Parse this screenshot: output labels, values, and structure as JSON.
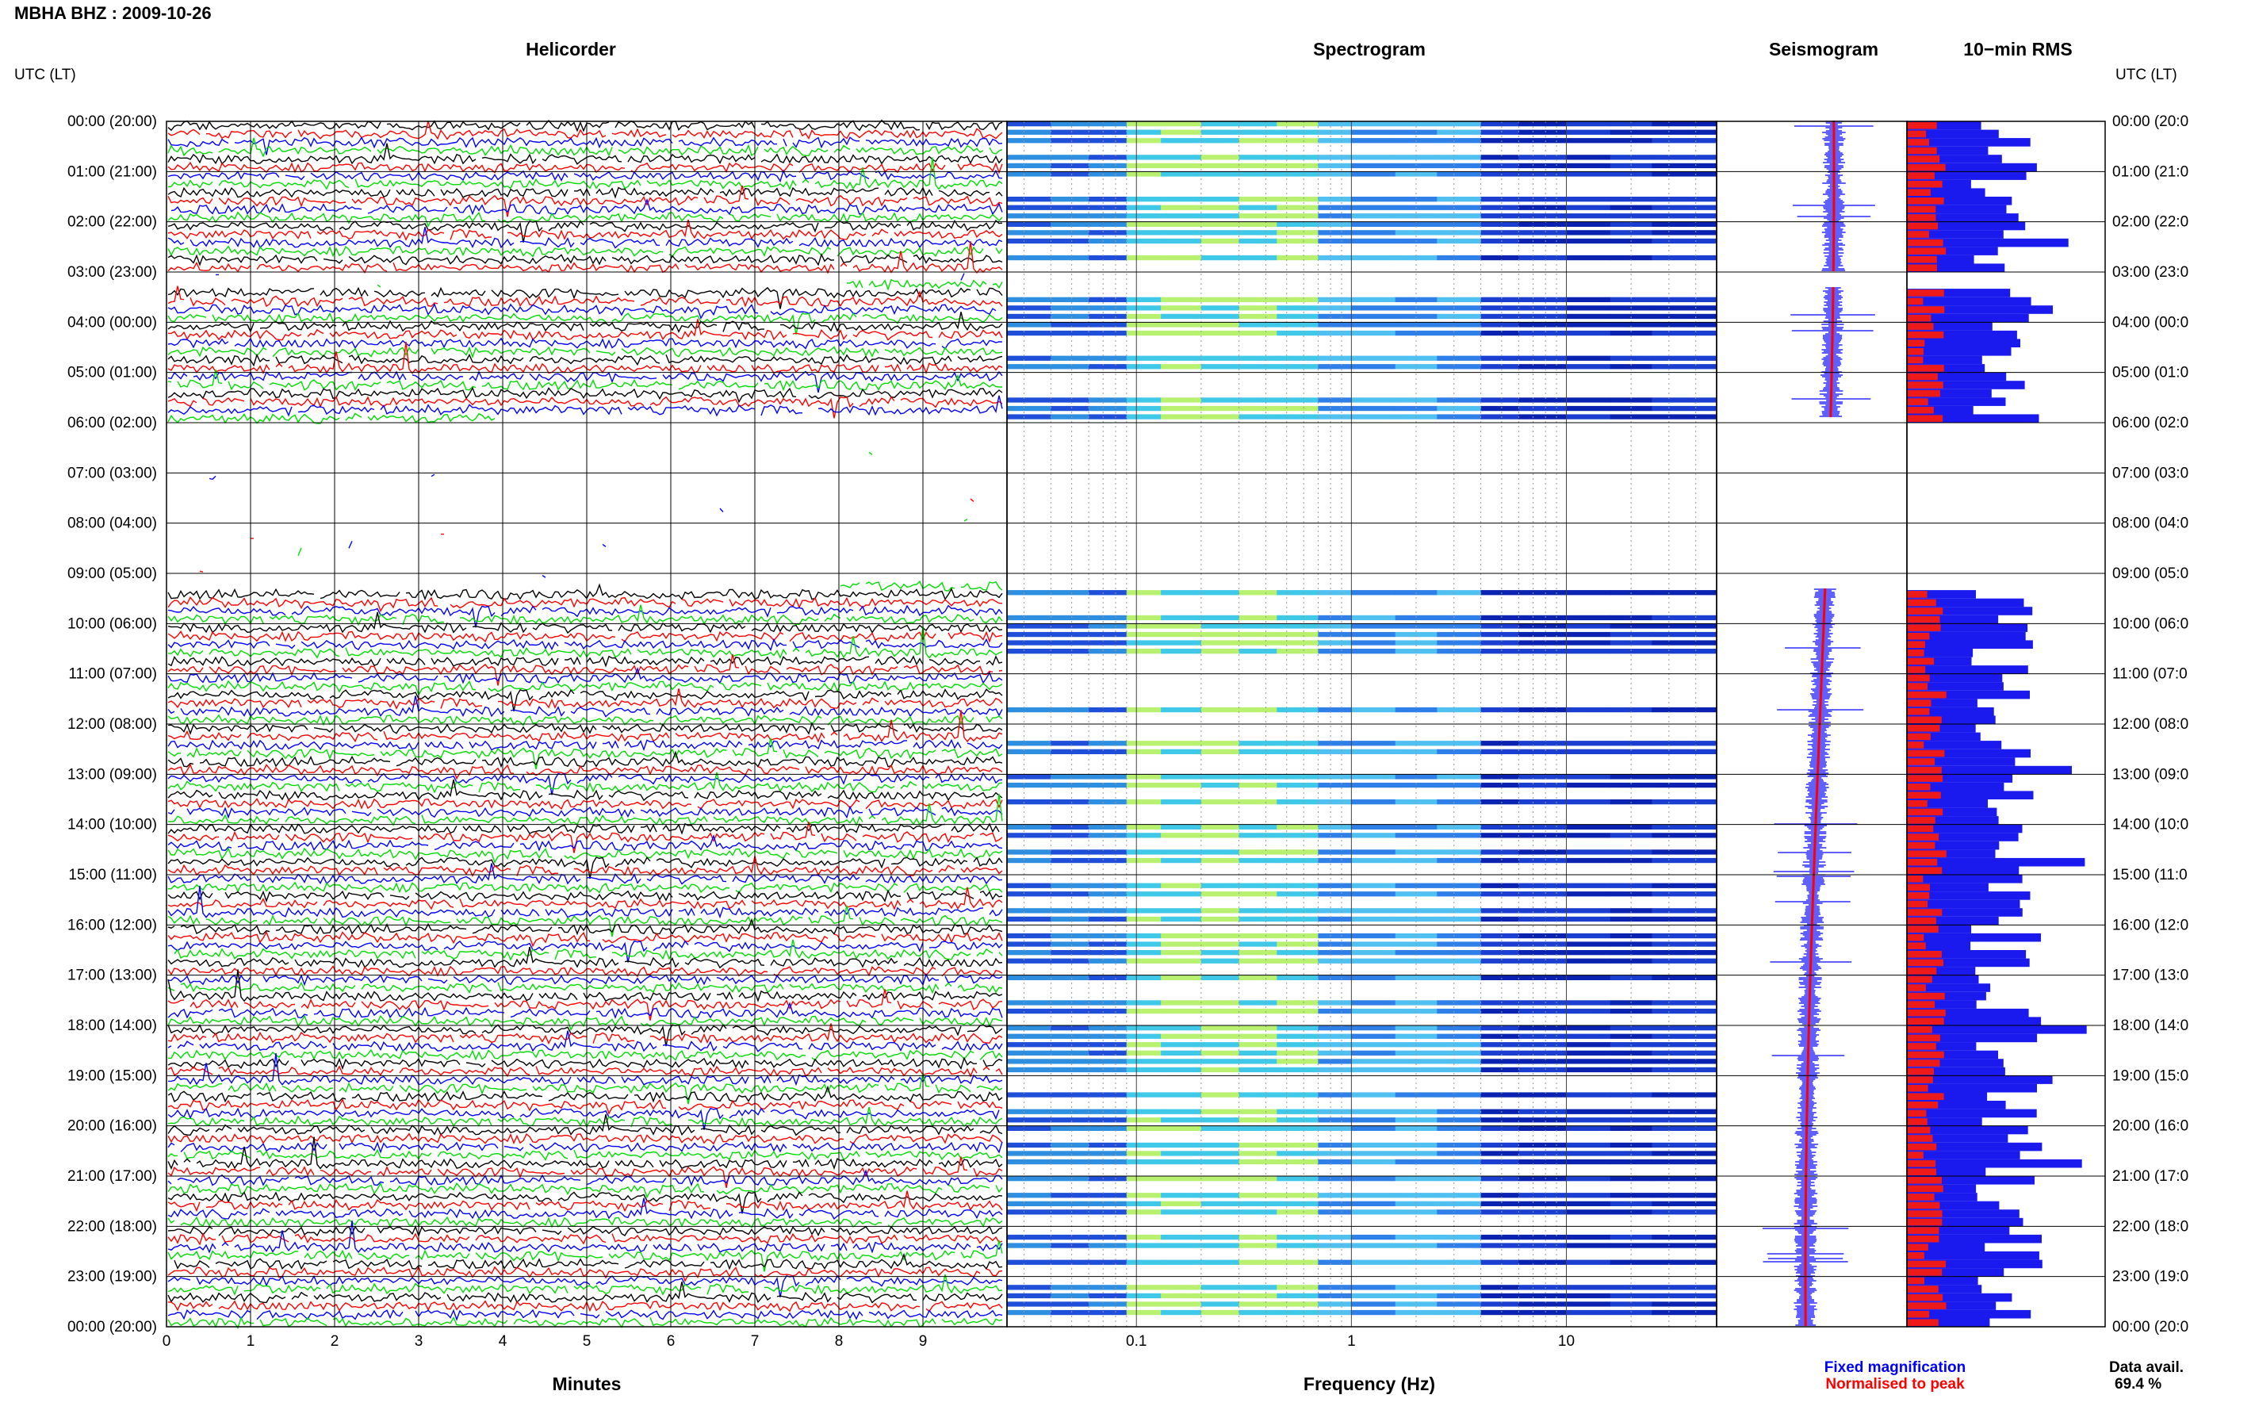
{
  "chart_data": {
    "type": "heatmap",
    "title": "MBHA BHZ : 2009-10-26",
    "time_axis_label": "UTC (LT)",
    "hour_ticks": [
      "00:00 (20:00)",
      "01:00 (21:00)",
      "02:00 (22:00)",
      "03:00 (23:00)",
      "04:00 (00:00)",
      "05:00 (01:00)",
      "06:00 (02:00)",
      "07:00 (03:00)",
      "08:00 (04:00)",
      "09:00 (05:00)",
      "10:00 (06:00)",
      "11:00 (07:00)",
      "12:00 (08:00)",
      "13:00 (09:00)",
      "14:00 (10:00)",
      "15:00 (11:00)",
      "16:00 (12:00)",
      "17:00 (13:00)",
      "18:00 (14:00)",
      "19:00 (15:00)",
      "20:00 (16:00)",
      "21:00 (17:00)",
      "22:00 (18:00)",
      "23:00 (19:00)",
      "00:00 (20:00)"
    ],
    "right_hour_ticks": [
      "00:00 (20:0",
      "01:00 (21:0",
      "02:00 (22:0",
      "03:00 (23:0",
      "04:00 (00:0",
      "05:00 (01:0",
      "06:00 (02:0",
      "07:00 (03:0",
      "08:00 (04:0",
      "09:00 (05:0",
      "10:00 (06:0",
      "11:00 (07:0",
      "12:00 (08:0",
      "13:00 (09:0",
      "14:00 (10:0",
      "15:00 (11:0",
      "16:00 (12:0",
      "17:00 (13:0",
      "18:00 (14:0",
      "19:00 (15:0",
      "20:00 (16:0",
      "21:00 (17:0",
      "22:00 (18:0",
      "23:00 (19:0",
      "00:00 (20:0"
    ],
    "panels": {
      "helicorder": {
        "title": "Helicorder",
        "xlabel": "Minutes",
        "xticks": [
          "0",
          "1",
          "2",
          "3",
          "4",
          "5",
          "6",
          "7",
          "8",
          "9"
        ],
        "xlim": [
          0,
          10
        ],
        "trace_colors": [
          "#000000",
          "#ff0000",
          "#0000ff",
          "#00dd00"
        ]
      },
      "spectrogram": {
        "title": "Spectrogram",
        "xlabel": "Frequency (Hz)",
        "xscale": "log",
        "xticks": [
          "0.1",
          "1",
          "10"
        ],
        "xlim": [
          0.025,
          50
        ]
      },
      "seismogram": {
        "title": "Seismogram",
        "legend": [
          {
            "label": "Fixed magnification",
            "color": "#0000ff"
          },
          {
            "label": "Normalised to peak",
            "color": "#ff0000"
          }
        ]
      },
      "rms": {
        "title": "10−min RMS",
        "data_availability_label": "Data avail.",
        "data_availability_value": "69.4 %"
      }
    },
    "data_gap_hours": [
      [
        3.0,
        3.3
      ],
      [
        5.9,
        9.3
      ]
    ]
  }
}
